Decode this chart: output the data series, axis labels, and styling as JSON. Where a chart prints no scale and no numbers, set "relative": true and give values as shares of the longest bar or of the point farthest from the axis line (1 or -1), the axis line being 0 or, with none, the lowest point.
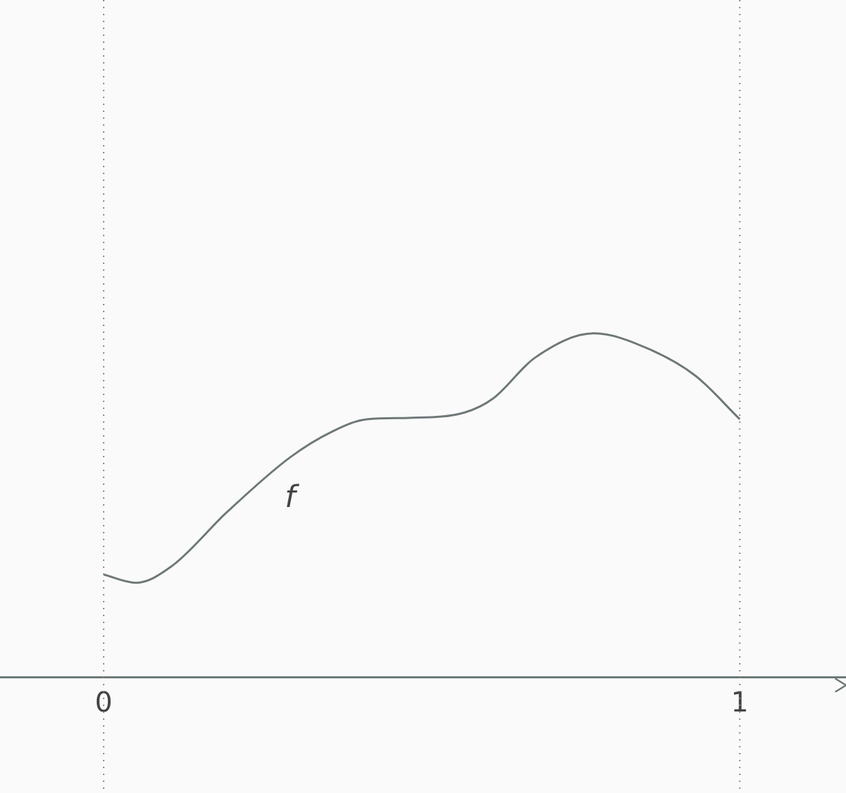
{
  "chart_data": {
    "type": "line",
    "relative": true,
    "x": [
      0,
      0.051,
      0.106,
      0.194,
      0.293,
      0.359,
      0.414,
      0.48,
      0.568,
      0.612,
      0.678,
      0.771,
      0.855,
      0.93,
      1
    ],
    "series": [
      {
        "name": "f",
        "color": "#6e7878",
        "values": [
          0.298,
          0.274,
          0.321,
          0.48,
          0.639,
          0.714,
          0.75,
          0.754,
          0.77,
          0.81,
          0.929,
          1,
          0.956,
          0.877,
          0.75
        ]
      }
    ],
    "marker": "none",
    "line_style": "solid",
    "xlim": [
      -0.163,
      1.167
    ],
    "xticks": [
      0,
      1
    ],
    "ref_lines": [
      {
        "axis": "x",
        "value": 0,
        "color": "#888888",
        "line_style": "dotted"
      },
      {
        "axis": "x",
        "value": 1,
        "color": "#888888",
        "line_style": "dotted"
      }
    ]
  }
}
